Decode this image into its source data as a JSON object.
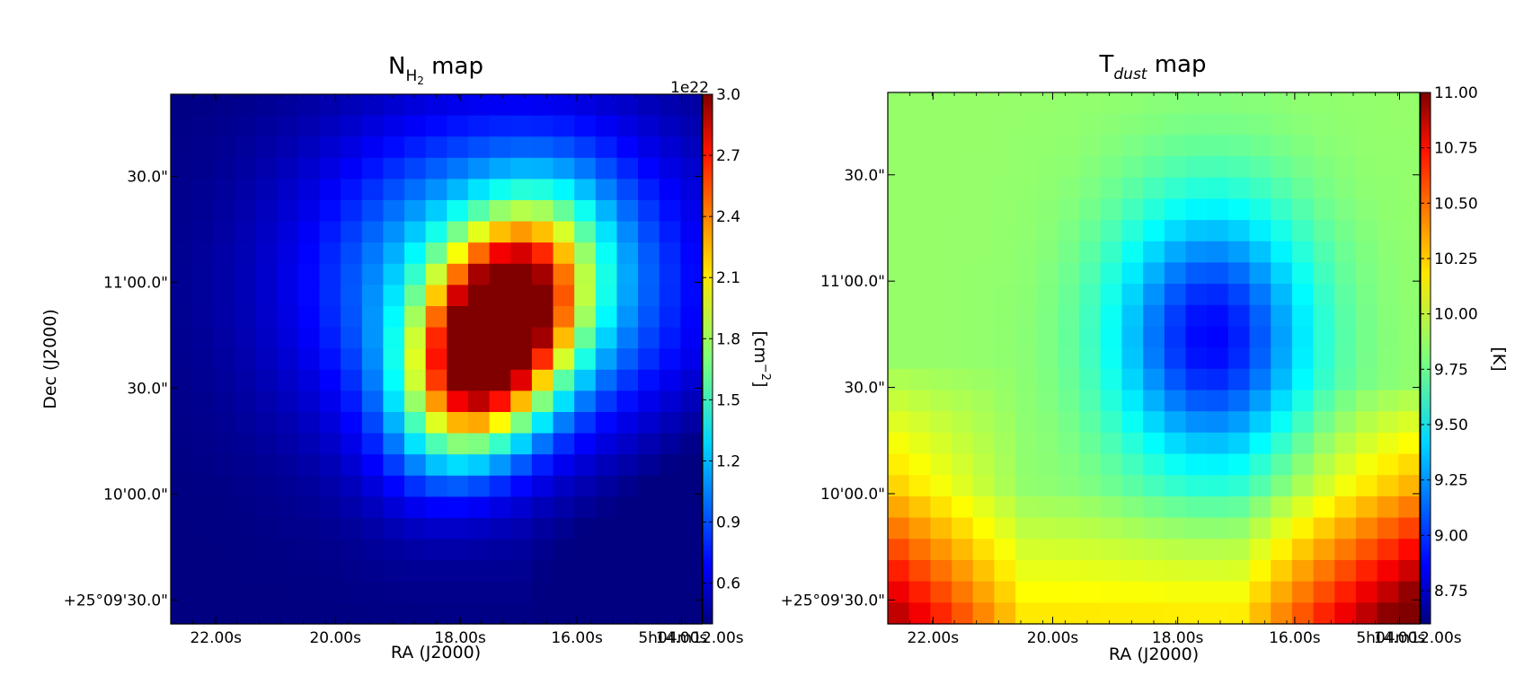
{
  "chart_data": [
    {
      "type": "heatmap",
      "title_main": "N",
      "title_sub": "H",
      "title_subsub": "2",
      "title_rest": " map",
      "xlabel": "RA (J2000)",
      "ylabel": "Dec (J2000)",
      "xticks": [
        "22.00s",
        "20.00s",
        "18.00s",
        "16.00s",
        "14.00s",
        "5h04m12.00s"
      ],
      "yticks": [
        "30.0\"",
        "11'00.0\"",
        "30.0\"",
        "10'00.0\"",
        "+25°09'30.0\""
      ],
      "colorbar": {
        "label_base": "[cm",
        "label_sup": "−2",
        "label_close": "]",
        "offset_text": "1e22",
        "ticks": [
          "0.6",
          "0.9",
          "1.2",
          "1.5",
          "1.8",
          "2.1",
          "2.4",
          "2.7",
          "3.0"
        ],
        "tick_values": [
          0.6,
          0.9,
          1.2,
          1.5,
          1.8,
          2.1,
          2.4,
          2.7,
          3.0
        ],
        "range": [
          0.4,
          3.0
        ],
        "colormap": "jet"
      },
      "grid_size": [
        25,
        25
      ],
      "peak": {
        "value": 3.0,
        "col": 14.7,
        "row": 11.0
      },
      "background_min": 0.4
    },
    {
      "type": "heatmap",
      "title_main": "T",
      "title_sub": "dust",
      "title_rest": " map",
      "xlabel": "RA (J2000)",
      "ylabel": "",
      "xticks": [
        "22.00s",
        "20.00s",
        "18.00s",
        "16.00s",
        "14.00s",
        "5h04m12.00s"
      ],
      "yticks": [
        "30.0\"",
        "11'00.0\"",
        "30.0\"",
        "10'00.0\"",
        "+25°09'30.0\""
      ],
      "colorbar": {
        "label": "[K]",
        "ticks": [
          "8.75",
          "9.00",
          "9.25",
          "9.50",
          "9.75",
          "10.00",
          "10.25",
          "10.50",
          "10.75",
          "11.00"
        ],
        "tick_values": [
          8.75,
          9.0,
          9.25,
          9.5,
          9.75,
          10.0,
          10.25,
          10.5,
          10.75,
          11.0
        ],
        "range": [
          8.6,
          11.0
        ],
        "colormap": "jet"
      },
      "grid_size": [
        25,
        25
      ],
      "minimum": {
        "value": 8.95,
        "col": 14.7,
        "row": 11.0
      }
    }
  ]
}
